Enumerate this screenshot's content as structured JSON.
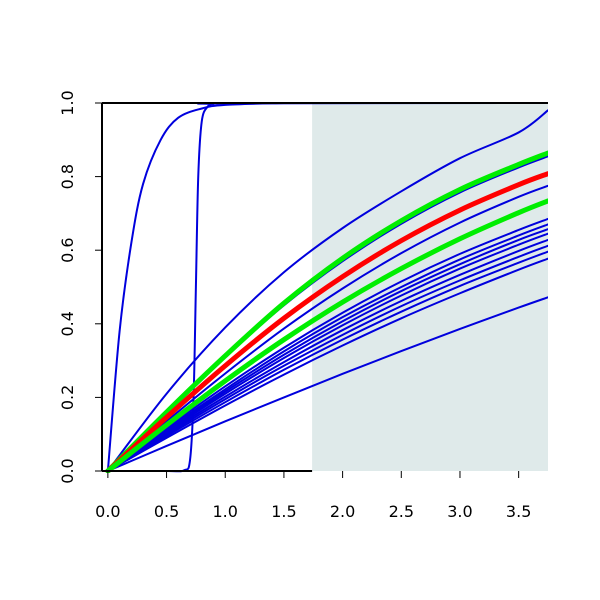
{
  "chart_data": {
    "type": "line",
    "title": "",
    "xlabel": "",
    "ylabel": "",
    "xlim": [
      -0.05,
      3.75
    ],
    "ylim": [
      0.0,
      1.0
    ],
    "x_ticks": [
      "0.0",
      "0.5",
      "1.0",
      "1.5",
      "2.0",
      "2.5",
      "3.0",
      "3.5"
    ],
    "y_ticks": [
      "0.0",
      "0.2",
      "0.4",
      "0.6",
      "0.8",
      "1.0"
    ],
    "shaded_region": {
      "x_from": 1.74,
      "x_to": 3.75,
      "color": "#dfeaea"
    },
    "grid": false,
    "legend": "none",
    "colors": {
      "blue": "#0000dd",
      "red": "#ff0000",
      "green": "#00ee00",
      "axis": "#000000"
    },
    "series": [
      {
        "color": "blue",
        "x": [
          0,
          0.1,
          0.2,
          0.3,
          0.45,
          0.6,
          0.8,
          1.0,
          1.5
        ],
        "y": [
          0,
          0.38,
          0.62,
          0.78,
          0.9,
          0.96,
          0.985,
          0.995,
          1.0
        ]
      },
      {
        "color": "blue",
        "x": [
          0,
          0.5,
          0.65,
          0.7,
          0.73,
          0.75,
          0.77,
          0.8,
          0.85,
          0.9,
          1.0,
          3.75
        ],
        "y": [
          0,
          0,
          0.002,
          0.03,
          0.2,
          0.5,
          0.8,
          0.95,
          0.99,
          0.997,
          0.999,
          1.0
        ]
      },
      {
        "color": "blue",
        "x": [
          0,
          0.5,
          1.0,
          1.5,
          2.0,
          2.5,
          3.0,
          3.5,
          3.75
        ],
        "y": [
          0,
          0.21,
          0.39,
          0.54,
          0.66,
          0.76,
          0.85,
          0.92,
          0.98
        ]
      },
      {
        "color": "blue",
        "x": [
          0,
          0.5,
          1.0,
          1.5,
          2.0,
          2.5,
          3.0,
          3.5,
          3.75
        ],
        "y": [
          0,
          0.158,
          0.31,
          0.45,
          0.57,
          0.672,
          0.757,
          0.825,
          0.855
        ]
      },
      {
        "color": "blue",
        "x": [
          0,
          0.5,
          1.0,
          1.5,
          2.0,
          2.5,
          3.0,
          3.5,
          3.75
        ],
        "y": [
          0,
          0.135,
          0.265,
          0.387,
          0.496,
          0.592,
          0.675,
          0.745,
          0.775
        ]
      },
      {
        "color": "blue",
        "x": [
          0,
          0.5,
          1.0,
          1.5,
          2.0,
          2.5,
          3.0,
          3.5,
          3.75
        ],
        "y": [
          0,
          0.117,
          0.23,
          0.335,
          0.43,
          0.515,
          0.59,
          0.655,
          0.685
        ]
      },
      {
        "color": "blue",
        "x": [
          0,
          0.5,
          1.0,
          1.5,
          2.0,
          2.5,
          3.0,
          3.5,
          3.75
        ],
        "y": [
          0,
          0.113,
          0.222,
          0.325,
          0.418,
          0.5,
          0.575,
          0.64,
          0.67
        ]
      },
      {
        "color": "blue",
        "x": [
          0,
          0.5,
          1.0,
          1.5,
          2.0,
          2.5,
          3.0,
          3.5,
          3.75
        ],
        "y": [
          0,
          0.11,
          0.216,
          0.316,
          0.407,
          0.489,
          0.562,
          0.628,
          0.657
        ]
      },
      {
        "color": "blue",
        "x": [
          0,
          0.5,
          1.0,
          1.5,
          2.0,
          2.5,
          3.0,
          3.5,
          3.75
        ],
        "y": [
          0,
          0.107,
          0.21,
          0.307,
          0.396,
          0.477,
          0.55,
          0.615,
          0.645
        ]
      },
      {
        "color": "blue",
        "x": [
          0,
          0.5,
          1.0,
          1.5,
          2.0,
          2.5,
          3.0,
          3.5,
          3.75
        ],
        "y": [
          0,
          0.103,
          0.202,
          0.296,
          0.383,
          0.462,
          0.533,
          0.598,
          0.628
        ]
      },
      {
        "color": "blue",
        "x": [
          0,
          0.5,
          1.0,
          1.5,
          2.0,
          2.5,
          3.0,
          3.5,
          3.75
        ],
        "y": [
          0,
          0.099,
          0.195,
          0.286,
          0.37,
          0.448,
          0.518,
          0.582,
          0.612
        ]
      },
      {
        "color": "blue",
        "x": [
          0,
          0.5,
          1.0,
          1.5,
          2.0,
          2.5,
          3.0,
          3.5,
          3.75
        ],
        "y": [
          0,
          0.095,
          0.187,
          0.275,
          0.357,
          0.433,
          0.503,
          0.566,
          0.596
        ]
      },
      {
        "color": "blue",
        "x": [
          0,
          0.5,
          1.0,
          1.5,
          2.0,
          2.5,
          3.0,
          3.5,
          3.75
        ],
        "y": [
          0,
          0.09,
          0.178,
          0.262,
          0.341,
          0.415,
          0.483,
          0.547,
          0.577
        ]
      },
      {
        "color": "blue",
        "x": [
          0,
          0.5,
          1.0,
          1.5,
          2.0,
          2.5,
          3.0,
          3.5,
          3.75
        ],
        "y": [
          0,
          0.068,
          0.135,
          0.2,
          0.264,
          0.326,
          0.386,
          0.444,
          0.472
        ]
      },
      {
        "color": "green",
        "x": [
          0,
          0.5,
          1.0,
          1.5,
          2.0,
          2.5,
          3.0,
          3.5,
          3.75
        ],
        "y": [
          0,
          0.16,
          0.313,
          0.456,
          0.578,
          0.68,
          0.765,
          0.833,
          0.864
        ]
      },
      {
        "color": "red",
        "x": [
          0,
          0.5,
          1.0,
          1.5,
          2.0,
          2.5,
          3.0,
          3.5,
          3.75
        ],
        "y": [
          0,
          0.146,
          0.286,
          0.415,
          0.528,
          0.626,
          0.709,
          0.778,
          0.808
        ]
      },
      {
        "color": "green",
        "x": [
          0,
          0.5,
          1.0,
          1.5,
          2.0,
          2.5,
          3.0,
          3.5,
          3.75
        ],
        "y": [
          0,
          0.125,
          0.245,
          0.357,
          0.459,
          0.55,
          0.631,
          0.702,
          0.734
        ]
      }
    ]
  }
}
